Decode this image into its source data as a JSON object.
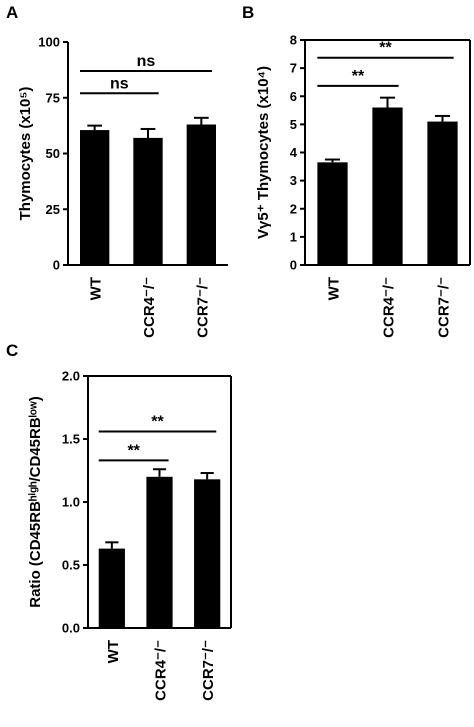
{
  "chart_data": [
    {
      "type": "bar",
      "panel": "A",
      "y_label": "Thymocytes  (x10⁵)",
      "categories": [
        "WT",
        "CCR4⁻/⁻",
        "CCR7⁻/⁻"
      ],
      "values": [
        60.5,
        57,
        63
      ],
      "errors": [
        2,
        4,
        3
      ],
      "color": "#000000",
      "ylim": [
        0,
        100
      ],
      "yticks": [
        0,
        25,
        50,
        75,
        100
      ],
      "frame": false,
      "annotations": [
        {
          "text": "ns",
          "from": 0,
          "to": 1,
          "y": 77
        },
        {
          "text": "ns",
          "from": 0,
          "to": 2,
          "y": 87
        }
      ]
    },
    {
      "type": "bar",
      "panel": "B",
      "y_label": "Vγ5⁺ Thymocytes (x10⁴)",
      "categories": [
        "WT",
        "CCR4⁻/⁻",
        "CCR7⁻/⁻"
      ],
      "values": [
        3.65,
        5.6,
        5.1
      ],
      "errors": [
        0.1,
        0.35,
        0.2
      ],
      "color": "#000000",
      "ylim": [
        0,
        8
      ],
      "yticks": [
        0,
        1,
        2,
        3,
        4,
        5,
        6,
        7,
        8
      ],
      "frame": true,
      "annotations": [
        {
          "text": "**",
          "from": 0,
          "to": 1,
          "y": 6.37
        },
        {
          "text": "**",
          "from": 0,
          "to": 2,
          "y": 7.37
        }
      ]
    },
    {
      "type": "bar",
      "panel": "C",
      "y_label": "Ratio (CD45RBʰⁱᵍʰ/CD45RBˡᵒʷ)",
      "categories": [
        "WT",
        "CCR4⁻/⁻",
        "CCR7⁻/⁻"
      ],
      "values": [
        0.63,
        1.2,
        1.18
      ],
      "errors": [
        0.05,
        0.06,
        0.05
      ],
      "color": "#000000",
      "ylim": [
        0,
        2
      ],
      "yticks": [
        {
          "value": 0,
          "label": "0.0"
        },
        {
          "value": 0.5,
          "label": "0.5"
        },
        {
          "value": 1,
          "label": "1.0"
        },
        {
          "value": 1.5,
          "label": "1.5"
        },
        {
          "value": 2,
          "label": "2.0"
        }
      ],
      "frame": true,
      "annotations": [
        {
          "text": "**",
          "from": 0,
          "to": 1,
          "y": 1.33
        },
        {
          "text": "**",
          "from": 0,
          "to": 2,
          "y": 1.56
        }
      ]
    }
  ]
}
